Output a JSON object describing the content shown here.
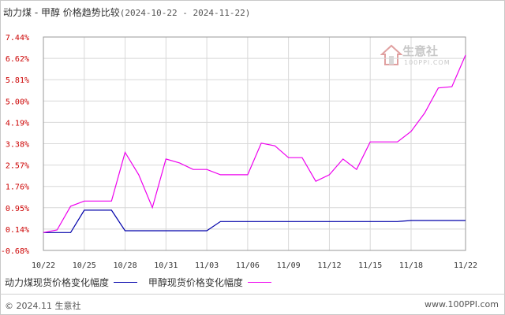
{
  "chart_data": {
    "type": "line",
    "title": "动力煤 - 甲醇 价格趋势比较",
    "date_range": "(2024-10-22 - 2024-11-22)",
    "y_ticks": [
      "7.44%",
      "6.62%",
      "5.81%",
      "5.00%",
      "4.19%",
      "3.38%",
      "2.57%",
      "1.76%",
      "0.95%",
      "0.14%",
      "-0.68%"
    ],
    "ylim": [
      -0.68,
      7.44
    ],
    "x_tick_labels": [
      "10/22",
      "10/25",
      "10/28",
      "10/31",
      "11/03",
      "11/06",
      "11/09",
      "11/12",
      "11/15",
      "11/18",
      "11/22"
    ],
    "grid": true,
    "legend_position": "bottom",
    "series": [
      {
        "name": "动力煤现货价格变化幅度",
        "color": "#0000aa",
        "points": [
          [
            "10/22",
            0.0
          ],
          [
            "10/23",
            0.0
          ],
          [
            "10/24",
            0.0
          ],
          [
            "10/25",
            0.85
          ],
          [
            "10/26",
            0.85
          ],
          [
            "10/27",
            0.85
          ],
          [
            "10/28",
            0.07
          ],
          [
            "10/29",
            0.07
          ],
          [
            "10/30",
            0.07
          ],
          [
            "10/31",
            0.07
          ],
          [
            "11/01",
            0.07
          ],
          [
            "11/02",
            0.07
          ],
          [
            "11/03",
            0.07
          ],
          [
            "11/04",
            0.42
          ],
          [
            "11/05",
            0.42
          ],
          [
            "11/06",
            0.42
          ],
          [
            "11/07",
            0.42
          ],
          [
            "11/08",
            0.42
          ],
          [
            "11/09",
            0.42
          ],
          [
            "11/10",
            0.42
          ],
          [
            "11/11",
            0.42
          ],
          [
            "11/12",
            0.42
          ],
          [
            "11/13",
            0.42
          ],
          [
            "11/14",
            0.42
          ],
          [
            "11/15",
            0.42
          ],
          [
            "11/16",
            0.42
          ],
          [
            "11/17",
            0.42
          ],
          [
            "11/18",
            0.46
          ],
          [
            "11/19",
            0.46
          ],
          [
            "11/20",
            0.46
          ],
          [
            "11/21",
            0.46
          ],
          [
            "11/22",
            0.46
          ]
        ]
      },
      {
        "name": "甲醇现货价格变化幅度",
        "color": "#ee00ee",
        "points": [
          [
            "10/22",
            0.0
          ],
          [
            "10/23",
            0.1
          ],
          [
            "10/24",
            1.0
          ],
          [
            "10/25",
            1.2
          ],
          [
            "10/26",
            1.2
          ],
          [
            "10/27",
            1.2
          ],
          [
            "10/28",
            3.05
          ],
          [
            "10/29",
            2.2
          ],
          [
            "10/30",
            0.95
          ],
          [
            "10/31",
            2.8
          ],
          [
            "11/01",
            2.65
          ],
          [
            "11/02",
            2.4
          ],
          [
            "11/03",
            2.4
          ],
          [
            "11/04",
            2.2
          ],
          [
            "11/05",
            2.2
          ],
          [
            "11/06",
            2.2
          ],
          [
            "11/07",
            3.4
          ],
          [
            "11/08",
            3.3
          ],
          [
            "11/09",
            2.85
          ],
          [
            "11/10",
            2.85
          ],
          [
            "11/11",
            1.95
          ],
          [
            "11/12",
            2.2
          ],
          [
            "11/13",
            2.8
          ],
          [
            "11/14",
            2.4
          ],
          [
            "11/15",
            3.45
          ],
          [
            "11/16",
            3.45
          ],
          [
            "11/17",
            3.45
          ],
          [
            "11/18",
            3.85
          ],
          [
            "11/19",
            4.55
          ],
          [
            "11/20",
            5.5
          ],
          [
            "11/21",
            5.55
          ],
          [
            "11/22",
            6.75
          ]
        ]
      }
    ]
  },
  "legend": {
    "item1_label": "动力煤现货价格变化幅度",
    "item2_label": "甲醇现货价格变化幅度"
  },
  "footer": {
    "copyright": "© 2024.11 生意社",
    "url": "www.100PPI.com"
  },
  "watermark": {
    "text": "生意社",
    "sub": "100PPI.COM"
  },
  "colors": {
    "grid": "#d8d8d8",
    "ytick": "#cc0000",
    "series1": "#0000aa",
    "series2": "#ee00ee"
  }
}
